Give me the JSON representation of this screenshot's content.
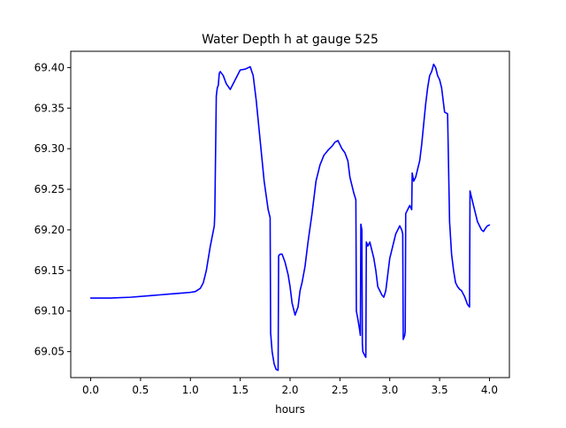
{
  "chart_data": {
    "type": "line",
    "title": "Water Depth h at gauge 525",
    "xlabel": "hours",
    "ylabel": "",
    "xlim": [
      -0.2,
      4.2
    ],
    "ylim": [
      69.018,
      69.42
    ],
    "grid": false,
    "x_ticks": [
      0.0,
      0.5,
      1.0,
      1.5,
      2.0,
      2.5,
      3.0,
      3.5,
      4.0
    ],
    "x_tick_labels": [
      "0.0",
      "0.5",
      "1.0",
      "1.5",
      "2.0",
      "2.5",
      "3.0",
      "3.5",
      "4.0"
    ],
    "y_ticks": [
      69.05,
      69.1,
      69.15,
      69.2,
      69.25,
      69.3,
      69.35,
      69.4
    ],
    "y_tick_labels": [
      "69.05",
      "69.10",
      "69.15",
      "69.20",
      "69.25",
      "69.30",
      "69.35",
      "69.40"
    ],
    "series": [
      {
        "color": "#0000ff",
        "x": [
          0.0,
          0.2,
          0.4,
          0.6,
          0.7,
          0.8,
          0.9,
          1.0,
          1.05,
          1.1,
          1.13,
          1.16,
          1.2,
          1.24,
          1.245,
          1.26,
          1.27,
          1.28,
          1.29,
          1.3,
          1.33,
          1.36,
          1.4,
          1.45,
          1.5,
          1.55,
          1.6,
          1.63,
          1.66,
          1.7,
          1.74,
          1.78,
          1.8,
          1.805,
          1.82,
          1.84,
          1.86,
          1.88,
          1.885,
          1.9,
          1.92,
          1.95,
          1.98,
          2.0,
          2.02,
          2.05,
          2.08,
          2.1,
          2.12,
          2.15,
          2.18,
          2.22,
          2.26,
          2.3,
          2.34,
          2.38,
          2.42,
          2.45,
          2.48,
          2.5,
          2.52,
          2.55,
          2.58,
          2.6,
          2.62,
          2.64,
          2.66,
          2.665,
          2.68,
          2.7,
          2.705,
          2.71,
          2.72,
          2.725,
          2.73,
          2.75,
          2.76,
          2.765,
          2.78,
          2.8,
          2.82,
          2.84,
          2.86,
          2.88,
          2.9,
          2.92,
          2.94,
          2.96,
          2.98,
          3.0,
          3.02,
          3.04,
          3.06,
          3.08,
          3.1,
          3.12,
          3.13,
          3.135,
          3.15,
          3.155,
          3.16,
          3.18,
          3.2,
          3.22,
          3.225,
          3.24,
          3.26,
          3.28,
          3.3,
          3.32,
          3.34,
          3.36,
          3.38,
          3.4,
          3.42,
          3.44,
          3.46,
          3.48,
          3.5,
          3.52,
          3.55,
          3.58,
          3.6,
          3.605,
          3.62,
          3.64,
          3.66,
          3.68,
          3.7,
          3.72,
          3.75,
          3.78,
          3.8,
          3.805,
          3.82,
          3.84,
          3.86,
          3.88,
          3.9,
          3.92,
          3.94,
          3.96,
          3.98,
          4.0
        ],
        "y": [
          69.116,
          69.116,
          69.117,
          69.119,
          69.12,
          69.121,
          69.122,
          69.123,
          69.124,
          69.128,
          69.135,
          69.15,
          69.18,
          69.205,
          69.22,
          69.365,
          69.375,
          69.378,
          69.393,
          69.395,
          69.39,
          69.38,
          69.373,
          69.385,
          69.397,
          69.398,
          69.401,
          69.39,
          69.36,
          69.31,
          69.26,
          69.225,
          69.215,
          69.073,
          69.05,
          69.035,
          69.028,
          69.027,
          69.168,
          69.17,
          69.17,
          69.16,
          69.145,
          69.13,
          69.11,
          69.095,
          69.105,
          69.125,
          69.135,
          69.155,
          69.185,
          69.22,
          69.26,
          69.28,
          69.292,
          69.298,
          69.303,
          69.308,
          69.31,
          69.305,
          69.3,
          69.295,
          69.285,
          69.265,
          69.255,
          69.245,
          69.237,
          69.1,
          69.09,
          69.075,
          69.07,
          69.207,
          69.2,
          69.06,
          69.05,
          69.045,
          69.043,
          69.185,
          69.18,
          69.185,
          69.175,
          69.165,
          69.15,
          69.13,
          69.125,
          69.12,
          69.117,
          69.125,
          69.145,
          69.165,
          69.175,
          69.185,
          69.195,
          69.2,
          69.205,
          69.2,
          69.195,
          69.065,
          69.07,
          69.075,
          69.22,
          69.225,
          69.23,
          69.225,
          69.27,
          69.26,
          69.265,
          69.275,
          69.285,
          69.305,
          69.33,
          69.355,
          69.375,
          69.39,
          69.395,
          69.404,
          69.4,
          69.39,
          69.385,
          69.375,
          69.345,
          69.343,
          69.21,
          69.2,
          69.17,
          69.15,
          69.135,
          69.13,
          69.127,
          69.125,
          69.118,
          69.108,
          69.105,
          69.248,
          69.24,
          69.23,
          69.22,
          69.21,
          69.205,
          69.2,
          69.198,
          69.202,
          69.205,
          69.206
        ]
      }
    ]
  }
}
